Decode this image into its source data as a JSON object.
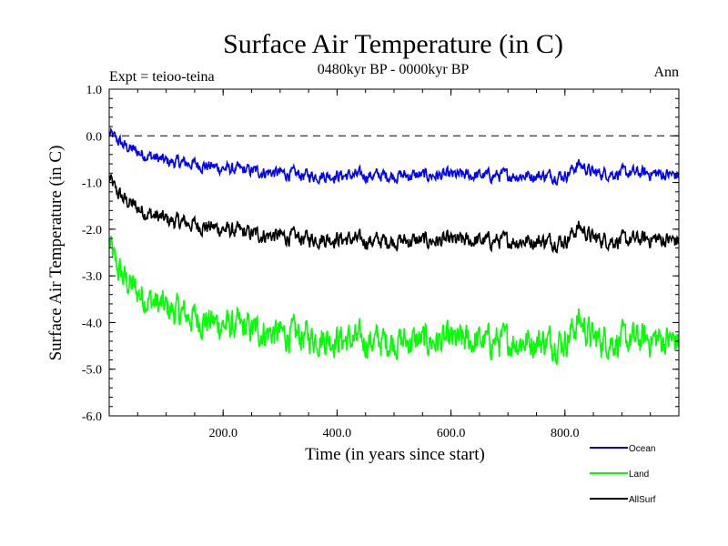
{
  "chart_data": {
    "type": "line",
    "title": "Surface Air Temperature (in C)",
    "subtitle": "0480kyr BP - 0000kyr BP",
    "experiment_label": "Expt = teioo-teina",
    "season_label": "Ann",
    "xlabel": "Time (in years since start)",
    "ylabel": "Surface Air Temperature (in C)",
    "xlim": [
      0,
      1000
    ],
    "ylim": [
      -6.0,
      1.0
    ],
    "x_ticks": [
      200,
      400,
      600,
      800
    ],
    "x_tick_labels": [
      "200.0",
      "400.0",
      "600.0",
      "800.0"
    ],
    "y_ticks": [
      1.0,
      0.0,
      -1.0,
      -2.0,
      -3.0,
      -4.0,
      -5.0,
      -6.0
    ],
    "y_tick_labels": [
      "1.0",
      "0.0",
      "-1.0",
      "-2.0",
      "-3.0",
      "-4.0",
      "-5.0",
      "-6.0"
    ],
    "reference_line": 0.0,
    "legend_position": "bottom-right",
    "series": [
      {
        "name": "Ocean",
        "color": "#0000ff",
        "x": [
          0,
          10,
          25,
          50,
          75,
          100,
          150,
          200,
          250,
          300,
          350,
          400,
          450,
          500,
          550,
          600,
          650,
          700,
          750,
          800,
          825,
          850,
          900,
          950,
          1000
        ],
        "values": [
          0.05,
          -0.05,
          -0.2,
          -0.35,
          -0.45,
          -0.55,
          -0.6,
          -0.7,
          -0.75,
          -0.8,
          -0.85,
          -0.85,
          -0.85,
          -0.85,
          -0.85,
          -0.85,
          -0.85,
          -0.85,
          -0.85,
          -0.85,
          -0.6,
          -0.8,
          -0.8,
          -0.8,
          -0.85
        ]
      },
      {
        "name": "Land",
        "color": "#00ff00",
        "x": [
          0,
          10,
          25,
          50,
          75,
          100,
          150,
          200,
          250,
          300,
          350,
          400,
          450,
          500,
          550,
          600,
          650,
          700,
          750,
          800,
          825,
          850,
          900,
          950,
          1000
        ],
        "values": [
          -2.3,
          -2.75,
          -3.05,
          -3.35,
          -3.55,
          -3.7,
          -3.9,
          -4.05,
          -4.15,
          -4.25,
          -4.3,
          -4.35,
          -4.4,
          -4.4,
          -4.4,
          -4.4,
          -4.4,
          -4.4,
          -4.4,
          -4.4,
          -3.95,
          -4.35,
          -4.4,
          -4.35,
          -4.4
        ]
      },
      {
        "name": "AllSurf",
        "color": "#000000",
        "x": [
          0,
          10,
          25,
          50,
          75,
          100,
          150,
          200,
          250,
          300,
          350,
          400,
          450,
          500,
          550,
          600,
          650,
          700,
          750,
          800,
          825,
          850,
          900,
          950,
          1000
        ],
        "values": [
          -0.9,
          -1.15,
          -1.35,
          -1.55,
          -1.7,
          -1.8,
          -1.9,
          -2.0,
          -2.1,
          -2.15,
          -2.2,
          -2.2,
          -2.25,
          -2.25,
          -2.25,
          -2.25,
          -2.25,
          -2.25,
          -2.25,
          -2.25,
          -1.95,
          -2.2,
          -2.25,
          -2.2,
          -2.25
        ]
      }
    ]
  }
}
